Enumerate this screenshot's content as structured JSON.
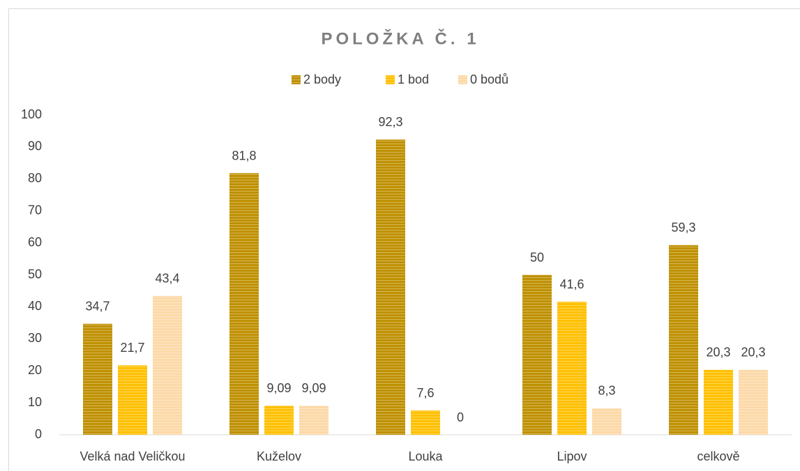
{
  "chart_data": {
    "type": "bar",
    "title": "POLOŽKA Č. 1",
    "categories": [
      "Velká nad Veličkou",
      "Kuželov",
      "Louka",
      "Lipov",
      "celkově"
    ],
    "series": [
      {
        "name": "2 body",
        "color": "#bf9000",
        "values": [
          34.7,
          81.8,
          92.3,
          50,
          59.3
        ],
        "value_labels": [
          "34,7",
          "81,8",
          "92,3",
          "50",
          "59,3"
        ]
      },
      {
        "name": "1 bod",
        "color": "#ffc000",
        "values": [
          21.7,
          9.09,
          7.6,
          41.6,
          20.3
        ],
        "value_labels": [
          "21,7",
          "9,09",
          "7,6",
          "41,6",
          "20,3"
        ]
      },
      {
        "name": "0 bodů",
        "color": "#fcd9a8",
        "values": [
          43.4,
          9.09,
          0,
          8.3,
          20.3
        ],
        "value_labels": [
          "43,4",
          "9,09",
          "0",
          "8,3",
          "20,3"
        ]
      }
    ],
    "ylim": [
      0,
      100
    ],
    "yticks": [
      0,
      10,
      20,
      30,
      40,
      50,
      60,
      70,
      80,
      90,
      100
    ],
    "grid": false,
    "legend": "top"
  }
}
